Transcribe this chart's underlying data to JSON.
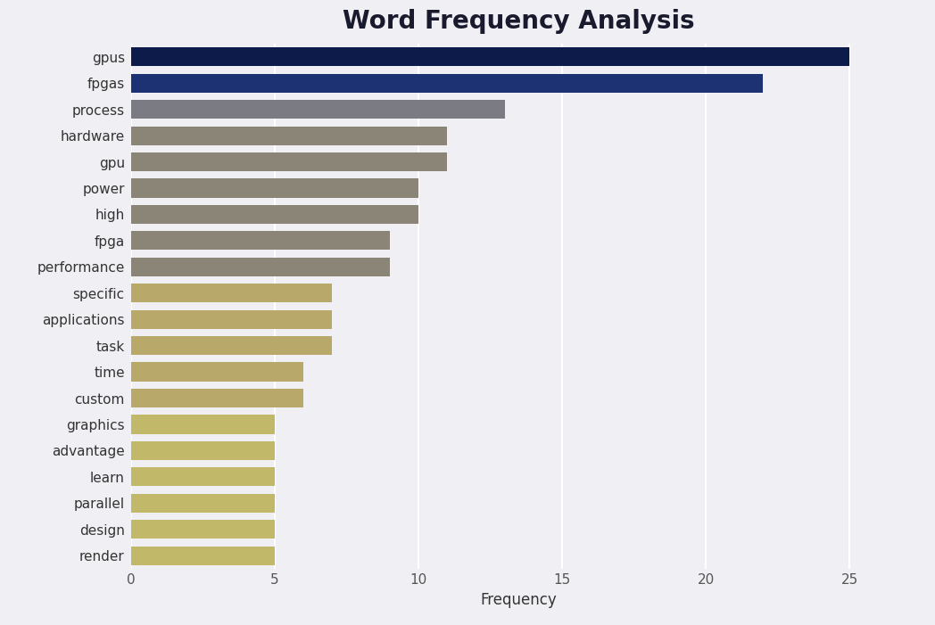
{
  "categories": [
    "gpus",
    "fpgas",
    "process",
    "hardware",
    "gpu",
    "power",
    "high",
    "fpga",
    "performance",
    "specific",
    "applications",
    "task",
    "time",
    "custom",
    "graphics",
    "advantage",
    "learn",
    "parallel",
    "design",
    "render"
  ],
  "values": [
    25,
    22,
    13,
    11,
    11,
    10,
    10,
    9,
    9,
    7,
    7,
    7,
    6,
    6,
    5,
    5,
    5,
    5,
    5,
    5
  ],
  "bar_colors": [
    "#0d1b4b",
    "#1c3272",
    "#7b7b84",
    "#8b8578",
    "#8b8578",
    "#8b8578",
    "#8b8578",
    "#8b8578",
    "#8b8578",
    "#b8a96a",
    "#b8a96a",
    "#b8a96a",
    "#b8a96a",
    "#b8a96a",
    "#c2b86a",
    "#c2b86a",
    "#c2b86a",
    "#c2b86a",
    "#c2b86a",
    "#c2b86a"
  ],
  "title": "Word Frequency Analysis",
  "xlabel": "Frequency",
  "xlim": [
    0,
    27
  ],
  "xticks": [
    0,
    5,
    10,
    15,
    20,
    25
  ],
  "background_color": "#f0f0f4",
  "plot_bg_color": "#f0f0f4",
  "title_fontsize": 20,
  "label_fontsize": 12,
  "tick_fontsize": 11,
  "bar_height": 0.72,
  "figsize": [
    10.48,
    7.01
  ],
  "dpi": 100
}
